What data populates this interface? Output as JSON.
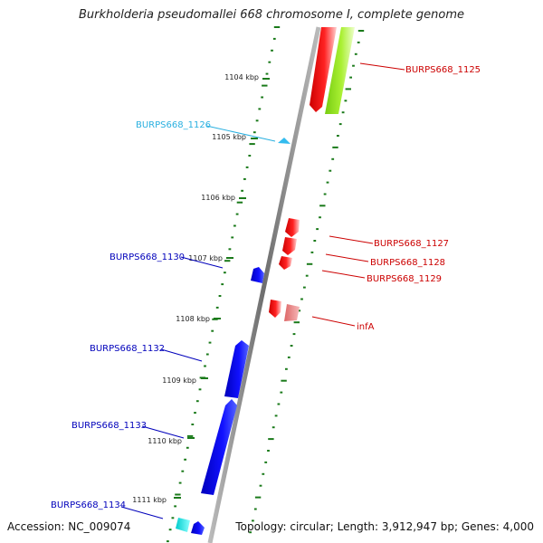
{
  "title": "Burkholderia pseudomallei 668 chromosome I, complete genome",
  "footer": {
    "accession": "Accession: NC_009074",
    "stats": "Topology: circular; Length: 3,912,947 bp; Genes: 4,000"
  },
  "colors": {
    "backbone": "#8a8a8a",
    "tick": "#1a7a1a",
    "forward_label": "#cc0000",
    "reverse_label": "#0000bb",
    "rna_label": "#2ab0e0"
  },
  "kbp_ticks": [
    "1104 kbp",
    "1105 kbp",
    "1106 kbp",
    "1107 kbp",
    "1108 kbp",
    "1109 kbp",
    "1110 kbp",
    "1111 kbp"
  ],
  "genes": [
    {
      "name": "BURPS668_1125",
      "strand": "forward",
      "color": "#ee0000"
    },
    {
      "name": "BURPS668_1125",
      "strand": "forward",
      "color": "#99ee22"
    },
    {
      "name": "BURPS668_1126",
      "strand": "reverse",
      "color": "#33bbee"
    },
    {
      "name": "BURPS668_1127",
      "strand": "forward",
      "color": "#ee0000"
    },
    {
      "name": "BURPS668_1128",
      "strand": "forward",
      "color": "#ee0000"
    },
    {
      "name": "BURPS668_1129",
      "strand": "forward",
      "color": "#ee0000"
    },
    {
      "name": "BURPS668_1130",
      "strand": "reverse",
      "color": "#0000dd"
    },
    {
      "name": "infA",
      "strand": "forward",
      "color": "#ee0000"
    },
    {
      "name": "infA",
      "strand": "forward",
      "color": "#e88080"
    },
    {
      "name": "BURPS668_1132",
      "strand": "reverse",
      "color": "#0000dd"
    },
    {
      "name": "BURPS668_1133",
      "strand": "reverse",
      "color": "#0000dd"
    },
    {
      "name": "BURPS668_1134",
      "strand": "reverse",
      "color": "#00dddd"
    },
    {
      "name": "BURPS668_1134",
      "strand": "reverse",
      "color": "#0000dd"
    }
  ],
  "labels": [
    {
      "text": "BURPS668_1125",
      "color": "#cc0000"
    },
    {
      "text": "BURPS668_1126",
      "color": "#2ab0e0"
    },
    {
      "text": "BURPS668_1127",
      "color": "#cc0000"
    },
    {
      "text": "BURPS668_1128",
      "color": "#cc0000"
    },
    {
      "text": "BURPS668_1129",
      "color": "#cc0000"
    },
    {
      "text": "BURPS668_1130",
      "color": "#0000bb"
    },
    {
      "text": "infA",
      "color": "#cc0000"
    },
    {
      "text": "BURPS668_1132",
      "color": "#0000bb"
    },
    {
      "text": "BURPS668_1133",
      "color": "#0000bb"
    },
    {
      "text": "BURPS668_1134",
      "color": "#0000bb"
    }
  ]
}
